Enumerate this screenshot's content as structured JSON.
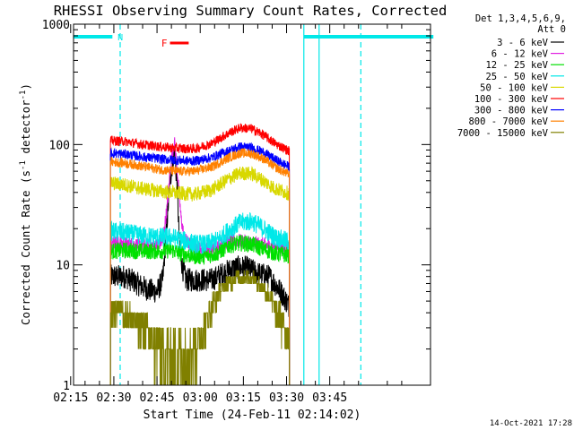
{
  "chart_data": {
    "type": "line",
    "title": "RHESSI Observing Summary Count Rates, Corrected",
    "xlabel": "Start Time (24-Feb-11 02:14:02)",
    "ylabel": "Corrected Count Rate (s",
    "ylabel_sup1": "-1",
    "ylabel_mid": " detector",
    "ylabel_sup2": "-1",
    "ylabel_end": ")",
    "y_scale": "log",
    "ylim": [
      1,
      1000
    ],
    "xlim_minutes": [
      2,
      126
    ],
    "x_ticks": [
      {
        "label": "02:15",
        "min": 1
      },
      {
        "label": "02:30",
        "min": 16
      },
      {
        "label": "02:45",
        "min": 31
      },
      {
        "label": "03:00",
        "min": 46
      },
      {
        "label": "03:15",
        "min": 61
      },
      {
        "label": "03:30",
        "min": 76
      },
      {
        "label": "03:45",
        "min": 91
      }
    ],
    "y_ticks": [
      {
        "label": "1",
        "value": 1
      },
      {
        "label": "10",
        "value": 10
      },
      {
        "label": "100",
        "value": 100
      },
      {
        "label": "1000",
        "value": 1000
      }
    ],
    "legend": {
      "placement": "right",
      "header": [
        "Det 1,3,4,5,6,9,",
        "Att 0"
      ],
      "entries": [
        {
          "label": "3 - 6 keV",
          "color": "#000000"
        },
        {
          "label": "6 - 12 keV",
          "color": "#e020e0"
        },
        {
          "label": "12 - 25 keV",
          "color": "#00e000"
        },
        {
          "label": "25 - 50 keV",
          "color": "#00e8e8"
        },
        {
          "label": "50 - 100 keV",
          "color": "#d8d800"
        },
        {
          "label": "100 - 300 keV",
          "color": "#ff0000"
        },
        {
          "label": "300 - 800 keV",
          "color": "#0000ff"
        },
        {
          "label": "800 - 7000 keV",
          "color": "#ff8000"
        },
        {
          "label": "7000 - 15000 keV",
          "color": "#808000"
        }
      ]
    },
    "night_label": "N",
    "flare_label": "F",
    "series": [
      {
        "name": "3 - 6 keV",
        "color": "#000000",
        "x": [
          14.8,
          20,
          24,
          28,
          31,
          33,
          34.3,
          35.5,
          37,
          38,
          38.8,
          39.8,
          41,
          43,
          46,
          50,
          54,
          58,
          62,
          66,
          70,
          74,
          77
        ],
        "y": [
          8,
          8,
          7,
          6.2,
          6,
          7.5,
          20,
          50,
          90,
          45,
          15,
          9.5,
          7.5,
          7.5,
          7.5,
          7.5,
          8.5,
          9.5,
          9.5,
          8.5,
          8,
          6,
          4.5
        ]
      },
      {
        "name": "6 - 12 keV",
        "color": "#e020e0",
        "x": [
          14.8,
          20,
          26,
          31,
          33,
          34.5,
          35.8,
          37,
          38.2,
          39.3,
          40.5,
          42,
          46,
          50,
          54,
          58,
          62,
          66,
          70,
          74,
          77
        ],
        "y": [
          15.5,
          15,
          14.5,
          14.5,
          16,
          30,
          70,
          108,
          55,
          25,
          16.5,
          15,
          13.5,
          13.5,
          15,
          16,
          15.5,
          15,
          14.5,
          14,
          14
        ]
      },
      {
        "name": "12 - 25 keV",
        "color": "#00e000",
        "x": [
          14.8,
          20,
          26,
          32,
          36,
          40,
          44,
          48,
          52,
          56,
          60,
          64,
          68,
          72,
          77
        ],
        "y": [
          13,
          13.2,
          13,
          13,
          13.3,
          12.3,
          11.8,
          11.8,
          12.5,
          14.5,
          15.2,
          14.8,
          13.5,
          12.5,
          12
        ]
      },
      {
        "name": "25 - 50 keV",
        "color": "#00e8e8",
        "x": [
          14.8,
          20,
          26,
          32,
          36,
          40,
          44,
          48,
          52,
          56,
          60,
          64,
          68,
          72,
          77
        ],
        "y": [
          19,
          18.5,
          17.5,
          17,
          17,
          16,
          15,
          14.8,
          16,
          19.5,
          22.5,
          23,
          20,
          17,
          15.5
        ]
      },
      {
        "name": "50 - 100 keV",
        "color": "#d8d800",
        "x": [
          14.8,
          20,
          26,
          32,
          38,
          44,
          50,
          56,
          60,
          64,
          68,
          72,
          77
        ],
        "y": [
          48,
          46,
          43,
          41,
          39.5,
          38.5,
          42,
          52,
          58,
          57,
          50,
          43,
          39
        ]
      },
      {
        "name": "100 - 300 keV",
        "color": "#ff0000",
        "x": [
          14.8,
          20,
          26,
          32,
          38,
          44,
          50,
          56,
          60,
          64,
          68,
          72,
          77
        ],
        "y": [
          108,
          106,
          100,
          96,
          93,
          92,
          102,
          125,
          138,
          135,
          120,
          102,
          88
        ]
      },
      {
        "name": "300 - 800 keV",
        "color": "#0000ff",
        "x": [
          14.8,
          20,
          26,
          32,
          38,
          44,
          50,
          56,
          60,
          64,
          68,
          72,
          77
        ],
        "y": [
          85,
          83,
          79,
          76,
          74,
          73,
          78,
          89,
          96,
          94,
          86,
          75,
          65
        ]
      },
      {
        "name": "800 - 7000 keV",
        "color": "#ff8000",
        "x": [
          14.8,
          20,
          26,
          32,
          38,
          44,
          50,
          56,
          60,
          64,
          68,
          72,
          77
        ],
        "y": [
          72,
          70,
          66,
          62,
          60,
          60,
          65,
          78,
          85,
          84,
          76,
          65,
          56
        ]
      },
      {
        "name": "7000 - 15000 keV",
        "color": "#808000",
        "x": [
          14.8,
          18,
          22,
          26,
          30,
          34,
          38,
          42,
          46,
          50,
          54,
          58,
          62,
          66,
          70,
          74,
          77
        ],
        "y": [
          4,
          4.5,
          3.6,
          3,
          2.4,
          1.9,
          1.8,
          1.9,
          2.6,
          4.5,
          6.5,
          7.7,
          8,
          7.3,
          5.5,
          3.5,
          2.5
        ]
      }
    ]
  },
  "footer": {
    "timestamp": "14-Oct-2021 17:28"
  }
}
